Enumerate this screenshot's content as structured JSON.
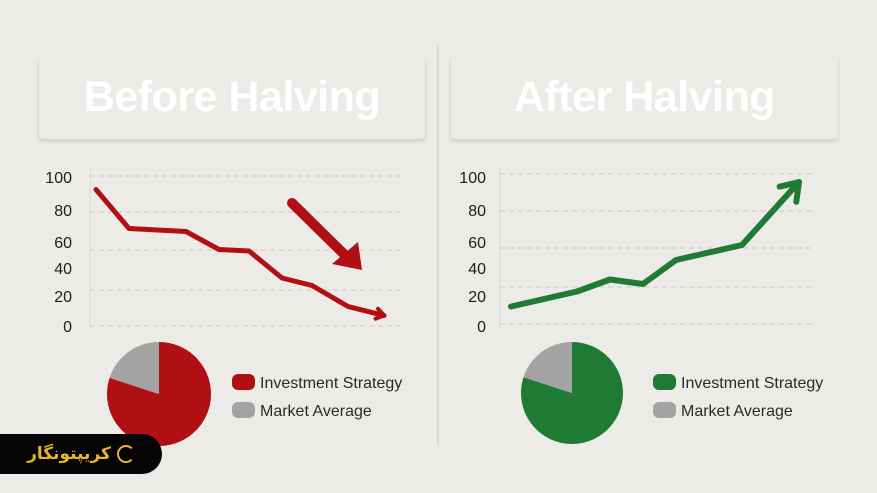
{
  "colors": {
    "background": "#ecebe7",
    "before": "#b00f14",
    "after": "#1f7a33",
    "market": "#a3a3a3",
    "grid": "#c9c8c4"
  },
  "brand": {
    "text": "کریپتونگار",
    "icon": "crypto-logo-icon"
  },
  "chart_data": [
    {
      "type": "line",
      "title": "Before Halving",
      "yticks": [
        "100",
        "80",
        "60",
        "40",
        "20",
        "0"
      ],
      "ylim": [
        0,
        100
      ],
      "grid": true,
      "trend_arrow": "down",
      "series": [
        {
          "x": [
            0.2,
            1.3,
            3.2,
            4.3,
            5.3,
            6.4,
            7.4,
            8.6,
            9.8
          ],
          "y": [
            91,
            65,
            63,
            51,
            50,
            32,
            27,
            13,
            7
          ]
        }
      ],
      "pie": {
        "values": [
          80,
          20
        ],
        "labels": [
          "Investment Strategy",
          "Market Average"
        ]
      },
      "legend": [
        "Investment Strategy",
        "Market Average"
      ],
      "legend_placement": "right of pie"
    },
    {
      "type": "line",
      "title": "After Halving",
      "yticks": [
        "100",
        "80",
        "60",
        "40",
        "20",
        "0"
      ],
      "ylim": [
        0,
        100
      ],
      "grid": true,
      "trend_arrow": "up",
      "series": [
        {
          "x": [
            0.2,
            2.4,
            3.5,
            4.6,
            5.7,
            6.8,
            7.9,
            9.8
          ],
          "y": [
            13,
            23,
            31,
            28,
            44,
            49,
            54,
            96
          ]
        }
      ],
      "pie": {
        "values": [
          80,
          20
        ],
        "labels": [
          "Investment Strategy",
          "Market Average"
        ]
      },
      "legend": [
        "Investment Strategy",
        "Market Average"
      ],
      "legend_placement": "right of pie"
    }
  ]
}
